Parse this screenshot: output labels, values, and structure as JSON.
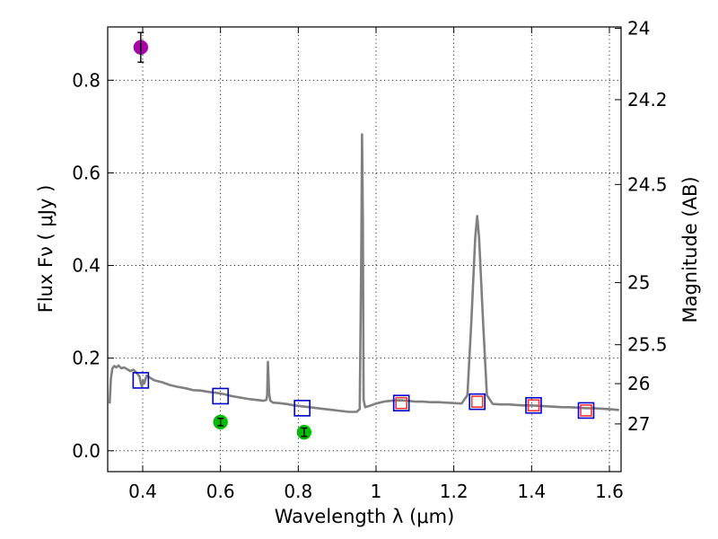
{
  "chart_data": {
    "type": "line",
    "xlabel": "Wavelength  λ (μm)",
    "ylabel": "Flux  Fν  ( μJy )",
    "ylabel_right": "Magnitude (AB)",
    "xlim": [
      0.31,
      1.63
    ],
    "ylim": [
      -0.045,
      0.915
    ],
    "grid": true,
    "x_ticks": [
      0.4,
      0.6,
      0.8,
      1.0,
      1.2,
      1.4,
      1.6
    ],
    "x_tick_labels": [
      "0.4",
      "0.6",
      "0.8",
      "1",
      "1.2",
      "1.4",
      "1.6"
    ],
    "y_ticks": [
      0.0,
      0.2,
      0.4,
      0.6,
      0.8
    ],
    "y_tick_labels": [
      "0.0",
      "0.2",
      "0.4",
      "0.6",
      "0.8"
    ],
    "right_ticks": [
      {
        "label": "24",
        "flux": 0.912
      },
      {
        "label": "24.2",
        "flux": 0.758
      },
      {
        "label": "24.5",
        "flux": 0.575
      },
      {
        "label": "25",
        "flux": 0.363
      },
      {
        "label": "25.5",
        "flux": 0.229
      },
      {
        "label": "26",
        "flux": 0.145
      },
      {
        "label": "27",
        "flux": 0.058
      }
    ],
    "series": [
      {
        "name": "model_spectrum",
        "kind": "line",
        "color": "#808080",
        "x": [
          0.315,
          0.318,
          0.322,
          0.327,
          0.332,
          0.338,
          0.345,
          0.352,
          0.36,
          0.368,
          0.376,
          0.385,
          0.392,
          0.395,
          0.398,
          0.401,
          0.404,
          0.41,
          0.418,
          0.43,
          0.45,
          0.47,
          0.49,
          0.51,
          0.53,
          0.55,
          0.57,
          0.59,
          0.61,
          0.63,
          0.65,
          0.67,
          0.69,
          0.71,
          0.718,
          0.72,
          0.722,
          0.725,
          0.728,
          0.735,
          0.75,
          0.77,
          0.79,
          0.81,
          0.83,
          0.85,
          0.87,
          0.89,
          0.91,
          0.93,
          0.95,
          0.958,
          0.962,
          0.964,
          0.966,
          0.968,
          0.972,
          0.98,
          1.0,
          1.02,
          1.04,
          1.06,
          1.08,
          1.1,
          1.12,
          1.14,
          1.16,
          1.18,
          1.2,
          1.22,
          1.235,
          1.245,
          1.255,
          1.26,
          1.265,
          1.275,
          1.285,
          1.3,
          1.32,
          1.34,
          1.36,
          1.38,
          1.4,
          1.42,
          1.44,
          1.46,
          1.48,
          1.5,
          1.52,
          1.54,
          1.56,
          1.58,
          1.6,
          1.625
        ],
        "y": [
          0.102,
          0.155,
          0.178,
          0.183,
          0.18,
          0.184,
          0.178,
          0.18,
          0.176,
          0.172,
          0.175,
          0.168,
          0.16,
          0.147,
          0.139,
          0.152,
          0.145,
          0.162,
          0.158,
          0.152,
          0.148,
          0.142,
          0.138,
          0.135,
          0.131,
          0.13,
          0.127,
          0.125,
          0.122,
          0.118,
          0.115,
          0.112,
          0.11,
          0.108,
          0.11,
          0.12,
          0.192,
          0.125,
          0.108,
          0.104,
          0.103,
          0.101,
          0.098,
          0.096,
          0.094,
          0.092,
          0.09,
          0.088,
          0.086,
          0.084,
          0.084,
          0.09,
          0.42,
          0.683,
          0.5,
          0.11,
          0.094,
          0.096,
          0.102,
          0.106,
          0.108,
          0.109,
          0.108,
          0.106,
          0.106,
          0.105,
          0.105,
          0.104,
          0.103,
          0.102,
          0.12,
          0.28,
          0.46,
          0.507,
          0.46,
          0.28,
          0.12,
          0.101,
          0.1,
          0.1,
          0.099,
          0.098,
          0.098,
          0.097,
          0.096,
          0.095,
          0.094,
          0.094,
          0.093,
          0.092,
          0.092,
          0.091,
          0.09,
          0.088
        ]
      },
      {
        "name": "model_photometry",
        "kind": "square",
        "color": "#0000cc",
        "x": [
          0.395,
          0.6,
          0.81,
          1.065,
          1.26,
          1.405,
          1.54
        ],
        "y": [
          0.152,
          0.118,
          0.092,
          0.103,
          0.106,
          0.098,
          0.087
        ]
      },
      {
        "name": "observed_red_squares",
        "kind": "square",
        "color": "#ff3333",
        "x": [
          1.065,
          1.26,
          1.405,
          1.54
        ],
        "y": [
          0.103,
          0.106,
          0.098,
          0.087
        ]
      },
      {
        "name": "observed_green_points",
        "kind": "point",
        "color": "#00bb00",
        "x": [
          0.6,
          0.815
        ],
        "y": [
          0.062,
          0.04
        ],
        "err": [
          0.008,
          0.009
        ]
      },
      {
        "name": "observed_magenta_point",
        "kind": "point",
        "color": "#aa00aa",
        "x": [
          0.395
        ],
        "y": [
          0.871
        ],
        "err": [
          0.032
        ]
      }
    ]
  }
}
